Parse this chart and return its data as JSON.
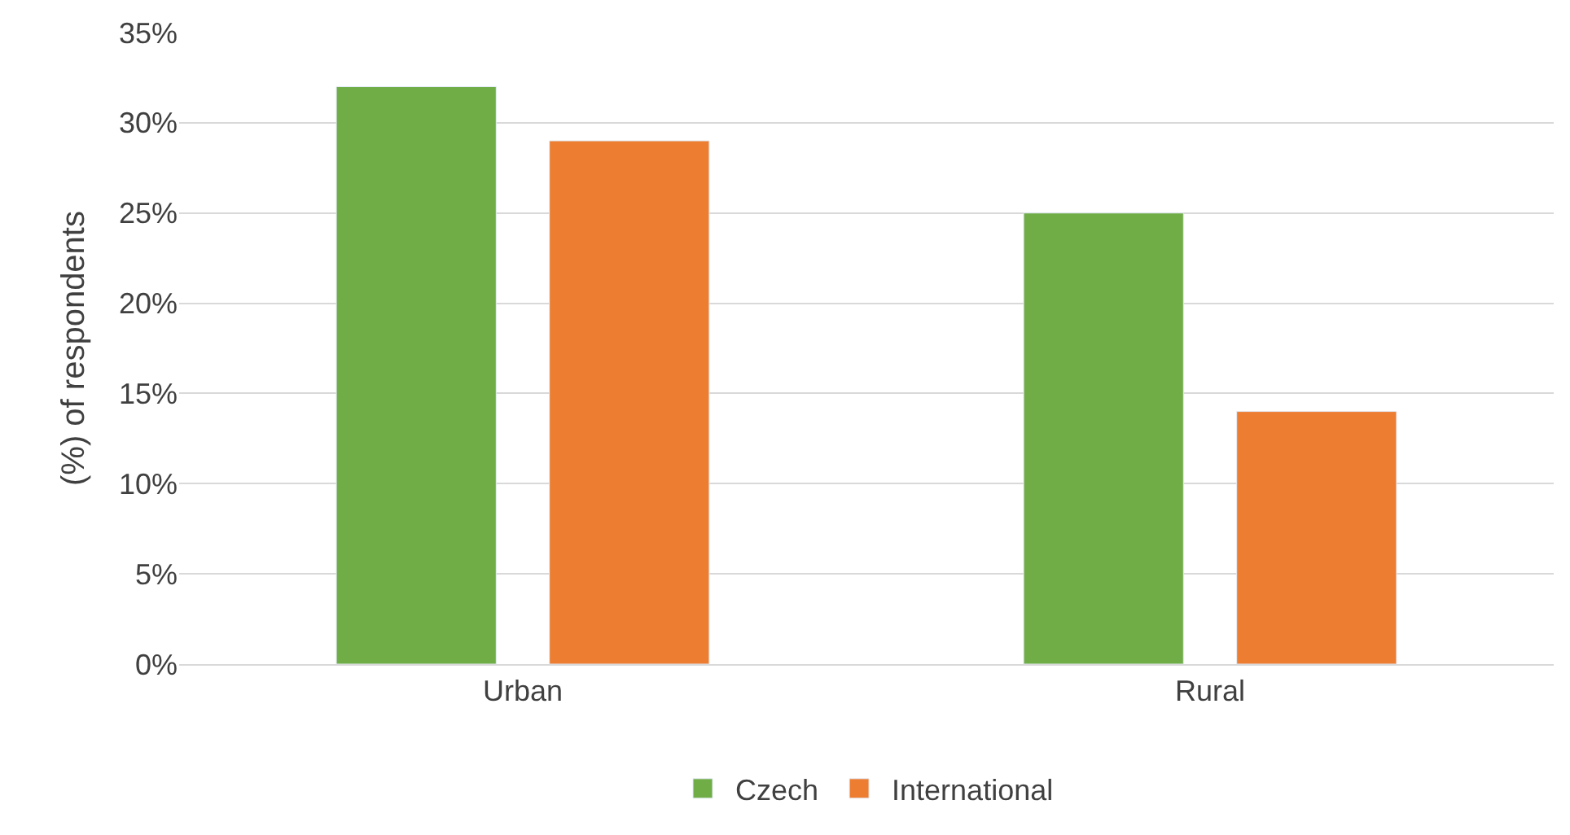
{
  "chart_data": {
    "type": "bar",
    "ylabel": "(%) of respondents",
    "categories": [
      "Urban",
      "Rural"
    ],
    "series": [
      {
        "name": "Czech",
        "color": "#70ad47",
        "values": [
          32,
          25
        ]
      },
      {
        "name": "International",
        "color": "#ed7d31",
        "values": [
          29,
          14
        ]
      }
    ],
    "ylim": [
      0,
      35
    ],
    "yticks": [
      {
        "value": 0,
        "label": "0%"
      },
      {
        "value": 5,
        "label": "5%"
      },
      {
        "value": 10,
        "label": "10%"
      },
      {
        "value": 15,
        "label": "15%"
      },
      {
        "value": 20,
        "label": "20%"
      },
      {
        "value": 25,
        "label": "25%"
      },
      {
        "value": 30,
        "label": "30%"
      },
      {
        "value": 35,
        "label": "35%"
      }
    ],
    "grid": "y",
    "legend": "bottom"
  }
}
